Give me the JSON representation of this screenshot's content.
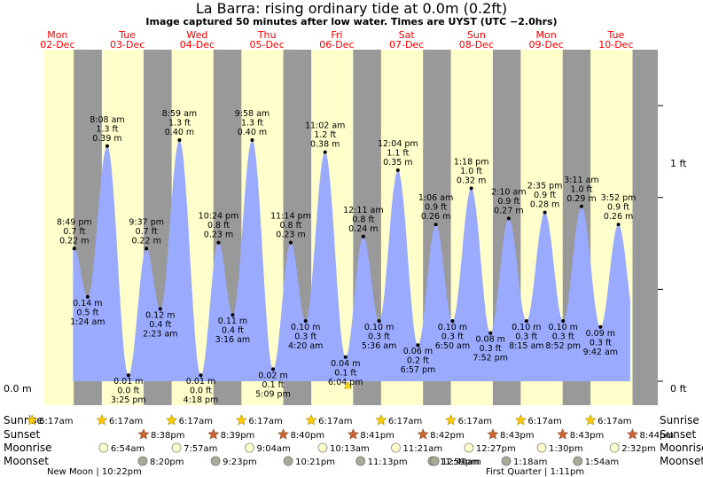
{
  "title": "La Barra: rising  ordinary tide at 0.0m (0.2ft)",
  "subtitle": "Image captured 50 minutes after low water. Times are UYST (UTC −2.0hrs)",
  "colors": {
    "day": "#ffffcc",
    "night": "#999999",
    "tide": "#99aaff",
    "date_label": "#ff0000",
    "sun": "#ffcc00",
    "sunset": "#cc6633",
    "moonrise": "#ffffcc",
    "moonset": "#aaaa99"
  },
  "chart_data": {
    "type": "area",
    "x_axis": "Mon 02-Dec to Tue 10-Dec",
    "y_range_m": [
      0.0,
      0.44
    ],
    "left_axis_labels": [
      {
        "value": 0.0,
        "label": "0.0 m"
      }
    ],
    "right_axis_labels": [
      {
        "value_ft": 0,
        "label": "0 ft"
      },
      {
        "value_ft": 1,
        "label": "1 ft"
      }
    ],
    "days": [
      {
        "dow": "Mon",
        "date": "02-Dec"
      },
      {
        "dow": "Tue",
        "date": "03-Dec"
      },
      {
        "dow": "Wed",
        "date": "04-Dec"
      },
      {
        "dow": "Thu",
        "date": "05-Dec"
      },
      {
        "dow": "Fri",
        "date": "06-Dec"
      },
      {
        "dow": "Sat",
        "date": "07-Dec"
      },
      {
        "dow": "Sun",
        "date": "08-Dec"
      },
      {
        "dow": "Mon",
        "date": "09-Dec"
      },
      {
        "dow": "Tue",
        "date": "10-Dec"
      }
    ],
    "tides": [
      {
        "type": "high",
        "day": 0,
        "time": "8:49 pm",
        "ft": "0.7 ft",
        "m": 0.22,
        "m_label": "0.22 m"
      },
      {
        "type": "low",
        "day": 1,
        "time": "1:24 am",
        "ft": "0.5 ft",
        "m": 0.14,
        "m_label": "0.14 m"
      },
      {
        "type": "high",
        "day": 1,
        "time": "8:08 am",
        "ft": "1.3 ft",
        "m": 0.39,
        "m_label": "0.39 m"
      },
      {
        "type": "low",
        "day": 1,
        "time": "3:25 pm",
        "ft": "0.0 ft",
        "m": 0.01,
        "m_label": "0.01 m"
      },
      {
        "type": "high",
        "day": 1,
        "time": "9:37 pm",
        "ft": "0.7 ft",
        "m": 0.22,
        "m_label": "0.22 m"
      },
      {
        "type": "low",
        "day": 2,
        "time": "2:23 am",
        "ft": "0.4 ft",
        "m": 0.12,
        "m_label": "0.12 m"
      },
      {
        "type": "high",
        "day": 2,
        "time": "8:59 am",
        "ft": "1.3 ft",
        "m": 0.4,
        "m_label": "0.40 m"
      },
      {
        "type": "low",
        "day": 2,
        "time": "4:18 pm",
        "ft": "0.0 ft",
        "m": 0.01,
        "m_label": "0.01 m"
      },
      {
        "type": "high",
        "day": 2,
        "time": "10:24 pm",
        "ft": "0.8 ft",
        "m": 0.23,
        "m_label": "0.23 m"
      },
      {
        "type": "low",
        "day": 3,
        "time": "3:16 am",
        "ft": "0.4 ft",
        "m": 0.11,
        "m_label": "0.11 m"
      },
      {
        "type": "high",
        "day": 3,
        "time": "9:58 am",
        "ft": "1.3 ft",
        "m": 0.4,
        "m_label": "0.40 m"
      },
      {
        "type": "low",
        "day": 3,
        "time": "5:09 pm",
        "ft": "0.1 ft",
        "m": 0.02,
        "m_label": "0.02 m"
      },
      {
        "type": "high",
        "day": 3,
        "time": "11:14 pm",
        "ft": "0.8 ft",
        "m": 0.23,
        "m_label": "0.23 m"
      },
      {
        "type": "low",
        "day": 4,
        "time": "4:20 am",
        "ft": "0.3 ft",
        "m": 0.1,
        "m_label": "0.10 m"
      },
      {
        "type": "high",
        "day": 4,
        "time": "11:02 am",
        "ft": "1.2 ft",
        "m": 0.38,
        "m_label": "0.38 m"
      },
      {
        "type": "low",
        "day": 4,
        "time": "6:04 pm",
        "ft": "0.1 ft",
        "m": 0.04,
        "m_label": "0.04 m"
      },
      {
        "type": "high",
        "day": 5,
        "time": "12:11 am",
        "ft": "0.8 ft",
        "m": 0.24,
        "m_label": "0.24 m"
      },
      {
        "type": "low",
        "day": 5,
        "time": "5:36 am",
        "ft": "0.3 ft",
        "m": 0.1,
        "m_label": "0.10 m"
      },
      {
        "type": "high",
        "day": 5,
        "time": "12:04 pm",
        "ft": "1.1 ft",
        "m": 0.35,
        "m_label": "0.35 m"
      },
      {
        "type": "low",
        "day": 5,
        "time": "6:57 pm",
        "ft": "0.2 ft",
        "m": 0.06,
        "m_label": "0.06 m"
      },
      {
        "type": "high",
        "day": 6,
        "time": "1:06 am",
        "ft": "0.9 ft",
        "m": 0.26,
        "m_label": "0.26 m"
      },
      {
        "type": "low",
        "day": 6,
        "time": "6:50 am",
        "ft": "0.3 ft",
        "m": 0.1,
        "m_label": "0.10 m"
      },
      {
        "type": "high",
        "day": 6,
        "time": "1:18 pm",
        "ft": "1.0 ft",
        "m": 0.32,
        "m_label": "0.32 m"
      },
      {
        "type": "low",
        "day": 6,
        "time": "7:52 pm",
        "ft": "0.3 ft",
        "m": 0.08,
        "m_label": "0.08 m"
      },
      {
        "type": "high",
        "day": 7,
        "time": "2:10 am",
        "ft": "0.9 ft",
        "m": 0.27,
        "m_label": "0.27 m"
      },
      {
        "type": "low",
        "day": 7,
        "time": "8:15 am",
        "ft": "0.3 ft",
        "m": 0.1,
        "m_label": "0.10 m"
      },
      {
        "type": "high",
        "day": 7,
        "time": "2:35 pm",
        "ft": "0.9 ft",
        "m": 0.28,
        "m_label": "0.28 m"
      },
      {
        "type": "low",
        "day": 7,
        "time": "8:52 pm",
        "ft": "0.3 ft",
        "m": 0.1,
        "m_label": "0.10 m"
      },
      {
        "type": "high",
        "day": 8,
        "time": "3:11 am",
        "ft": "1.0 ft",
        "m": 0.29,
        "m_label": "0.29 m"
      },
      {
        "type": "low",
        "day": 8,
        "time": "9:42 am",
        "ft": "0.3 ft",
        "m": 0.09,
        "m_label": "0.09 m"
      },
      {
        "type": "high",
        "day": 8,
        "time": "3:52 pm",
        "ft": "0.9 ft",
        "m": 0.26,
        "m_label": "0.26 m"
      }
    ],
    "row_labels": [
      "Sunrise",
      "Sunset",
      "Moonrise",
      "Moonset"
    ],
    "sunrise": [
      {
        "day": 0,
        "time": "6:17am"
      },
      {
        "day": 1,
        "time": "6:17am"
      },
      {
        "day": 2,
        "time": "6:17am"
      },
      {
        "day": 3,
        "time": "6:17am"
      },
      {
        "day": 4,
        "time": "6:17am"
      },
      {
        "day": 5,
        "time": "6:17am"
      },
      {
        "day": 6,
        "time": "6:17am"
      },
      {
        "day": 7,
        "time": "6:17am"
      },
      {
        "day": 8,
        "time": "6:17am"
      }
    ],
    "sunset": [
      {
        "day": 1,
        "time": "8:38pm"
      },
      {
        "day": 2,
        "time": "8:39pm"
      },
      {
        "day": 3,
        "time": "8:40pm"
      },
      {
        "day": 4,
        "time": "8:41pm"
      },
      {
        "day": 5,
        "time": "8:42pm"
      },
      {
        "day": 6,
        "time": "8:43pm"
      },
      {
        "day": 7,
        "time": "8:43pm"
      },
      {
        "day": 8,
        "time": "8:44pm"
      }
    ],
    "moonrise": [
      {
        "day": 1,
        "time": "6:54am"
      },
      {
        "day": 2,
        "time": "7:57am"
      },
      {
        "day": 3,
        "time": "9:04am"
      },
      {
        "day": 4,
        "time": "10:13am"
      },
      {
        "day": 5,
        "time": "11:21am"
      },
      {
        "day": 6,
        "time": "12:27pm"
      },
      {
        "day": 7,
        "time": "1:30pm"
      },
      {
        "day": 8,
        "time": "2:32pm"
      }
    ],
    "moonset": [
      {
        "day": 1,
        "time": "8:20pm"
      },
      {
        "day": 2,
        "time": "9:23pm"
      },
      {
        "day": 3,
        "time": "10:21pm"
      },
      {
        "day": 4,
        "time": "11:13pm"
      },
      {
        "day": 5,
        "time": "11:59pm"
      },
      {
        "day": 6,
        "time": "12:40am"
      },
      {
        "day": 7,
        "time": "1:18am"
      },
      {
        "day": 8,
        "time": "1:54am"
      }
    ],
    "moon_phases": [
      {
        "label": "New Moon | 10:22pm"
      },
      {
        "label": "First Quarter | 1:11pm"
      }
    ],
    "now_marker": "low water + 50 min on 06-Dec"
  }
}
